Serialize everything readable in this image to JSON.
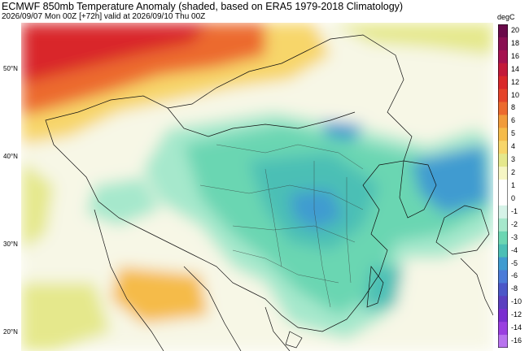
{
  "header": {
    "title": "ECMWF 850mb Temperature Anomaly (shaded, based on ERA5 1979-2018 Climatology)",
    "subtitle": "2026/09/07 Mon 00Z [+72h] valid at 2026/09/10 Thu 00Z"
  },
  "map": {
    "lat_labels": [
      "50°N",
      "40°N",
      "30°N",
      "20°N"
    ]
  },
  "colorbar": {
    "unit": "degC",
    "ticks": [
      "20",
      "18",
      "16",
      "14",
      "12",
      "10",
      "8",
      "6",
      "5",
      "4",
      "3",
      "2",
      "1",
      "0",
      "-1",
      "-2",
      "-3",
      "-4",
      "-5",
      "-6",
      "-8",
      "-10",
      "-12",
      "-14",
      "-16"
    ],
    "colors": [
      "#6a0a4a",
      "#8a1052",
      "#a5124f",
      "#c31a3a",
      "#d9282a",
      "#e5442a",
      "#ec6a2e",
      "#f19b3b",
      "#f5bb4a",
      "#f7d66a",
      "#e5e88c",
      "#f6f6c4",
      "#ffffff",
      "#ffffff",
      "#d6f3e8",
      "#a6e8cc",
      "#6bd6b2",
      "#4bbfb5",
      "#3f9bd0",
      "#4b7bd8",
      "#4b57c8",
      "#5a3fc0",
      "#7a2ed0",
      "#9a3fe0",
      "#b873ee"
    ]
  }
}
